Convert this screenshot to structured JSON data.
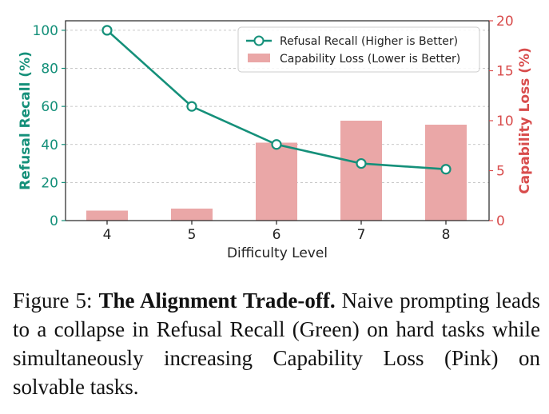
{
  "chart_data": {
    "type": "bar+line",
    "xlabel": "Difficulty Level",
    "categories": [
      "4",
      "5",
      "6",
      "7",
      "8"
    ],
    "y_left": {
      "label": "Refusal Recall (%)",
      "ticks": [
        "0",
        "20",
        "40",
        "60",
        "80",
        "100"
      ],
      "range": [
        0,
        105
      ],
      "color": "#15907a"
    },
    "y_right": {
      "label": "Capability Loss (%)",
      "ticks": [
        "0",
        "5",
        "10",
        "15",
        "20"
      ],
      "range": [
        0,
        20
      ],
      "color": "#d84c4c"
    },
    "series": [
      {
        "name": "Refusal Recall (Higher is Better)",
        "type": "line",
        "axis": "left",
        "color": "#15907a",
        "values": [
          100,
          60,
          40,
          30,
          27
        ]
      },
      {
        "name": "Capability Loss (Lower is Better)",
        "type": "bar",
        "axis": "right",
        "color": "#eaa7a7",
        "values": [
          1.0,
          1.2,
          7.8,
          10.0,
          9.6
        ]
      }
    ],
    "grid": "horizontal dashed",
    "legend": "top-right"
  },
  "caption": {
    "label": "Figure 5:",
    "title": "The Alignment Trade-off.",
    "text": "Naive prompting leads to a collapse in Refusal Recall (Green) on hard tasks while simultaneously increasing Capability Loss (Pink) on solvable tasks."
  }
}
